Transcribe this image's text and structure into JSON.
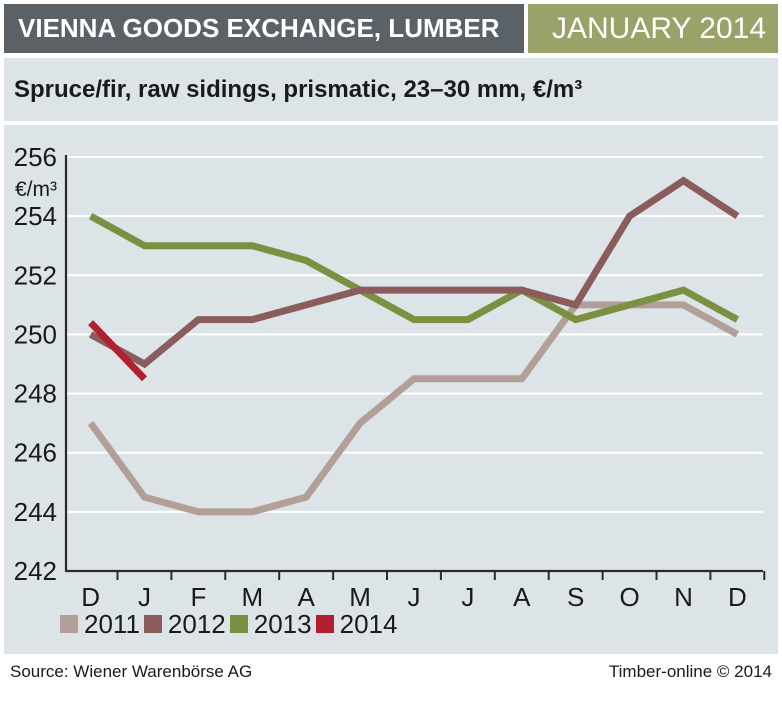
{
  "header": {
    "title": "VIENNA GOODS EXCHANGE, LUMBER",
    "date": "JANUARY 2014",
    "subtitle": "Spruce/fir, raw sidings, prismatic, 23–30 mm, €/m³"
  },
  "colors": {
    "title_bar_bg": "#5a6268",
    "date_badge_bg": "#97a368",
    "panel_bg": "#dde4e8",
    "gridline": "#ffffff",
    "axis": "#2b2b2b",
    "text": "#1a1a1a"
  },
  "chart_data": {
    "type": "line",
    "title": "Vienna Goods Exchange lumber price",
    "ylabel": "€/m³",
    "xlabel": "",
    "categories": [
      "D",
      "J",
      "F",
      "M",
      "A",
      "M",
      "J",
      "J",
      "A",
      "S",
      "O",
      "N",
      "D"
    ],
    "y_ticks": [
      242,
      244,
      246,
      248,
      250,
      252,
      254,
      256
    ],
    "ylim": [
      242,
      256
    ],
    "grid": true,
    "legend_position": "bottom",
    "series": [
      {
        "name": "2011",
        "color": "#b2a098",
        "values": [
          247,
          244.5,
          244,
          244,
          244.5,
          247,
          248.5,
          248.5,
          248.5,
          251,
          251,
          251,
          250
        ]
      },
      {
        "name": "2012",
        "color": "#8a5d5c",
        "values": [
          250,
          249,
          250.5,
          250.5,
          251,
          251.5,
          251.5,
          251.5,
          251.5,
          251,
          254,
          255.2,
          254
        ]
      },
      {
        "name": "2013",
        "color": "#7b9040",
        "values": [
          254,
          253,
          253,
          253,
          252.5,
          251.5,
          250.5,
          250.5,
          251.5,
          250.5,
          251,
          251.5,
          250.5
        ]
      },
      {
        "name": "2014",
        "color": "#b21f2e",
        "values": [
          250.4,
          248.5,
          null,
          null,
          null,
          null,
          null,
          null,
          null,
          null,
          null,
          null,
          null
        ]
      }
    ]
  },
  "footer": {
    "source": "Source: Wiener Warenbörse AG",
    "copyright": "Timber-online © 2014"
  }
}
